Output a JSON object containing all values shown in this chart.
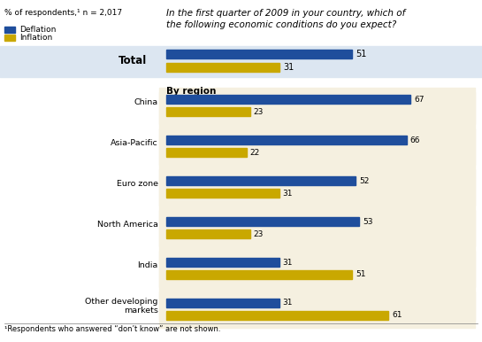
{
  "title_top": "% of respondents,¹ n = 2,017",
  "question": "In the first quarter of 2009 in your country, which of\nthe following economic conditions do you expect?",
  "footnote": "¹Respondents who answered “don’t know” are not shown.",
  "legend": [
    "Deflation",
    "Inflation"
  ],
  "colors": [
    "#1f4e9c",
    "#c9a800"
  ],
  "total_label": "Total",
  "total_deflation": 51,
  "total_inflation": 31,
  "by_region_label": "By region",
  "categories": [
    "China",
    "Asia-Pacific",
    "Euro zone",
    "North America",
    "India",
    "Other developing\nmarkets"
  ],
  "deflation": [
    67,
    66,
    52,
    53,
    31,
    31
  ],
  "inflation": [
    23,
    22,
    31,
    23,
    51,
    61
  ],
  "bg_total": "#dce6f1",
  "bg_region": "#f5f0e0",
  "bg_white": "#ffffff",
  "bar_height": 0.026,
  "xlim": [
    0,
    80
  ],
  "label_fontsize": 7.5,
  "tick_fontsize": 7.5
}
